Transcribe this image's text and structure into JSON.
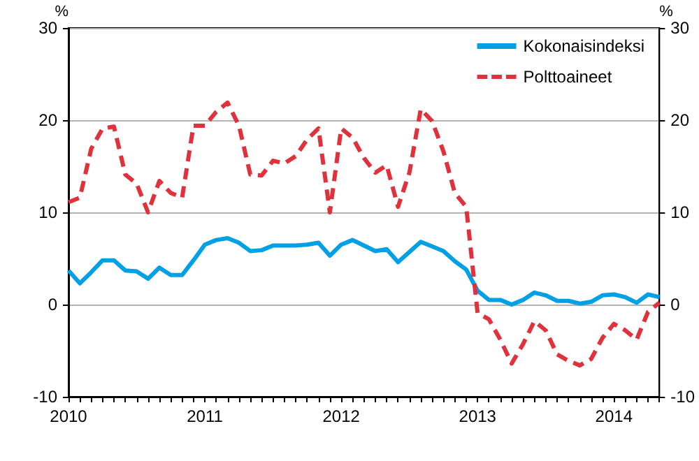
{
  "chart_data": {
    "type": "line",
    "categories": [
      "2010",
      null,
      null,
      null,
      null,
      null,
      null,
      null,
      null,
      null,
      null,
      null,
      "2011",
      null,
      null,
      null,
      null,
      null,
      null,
      null,
      null,
      null,
      null,
      null,
      "2012",
      null,
      null,
      null,
      null,
      null,
      null,
      null,
      null,
      null,
      null,
      null,
      "2013",
      null,
      null,
      null,
      null,
      null,
      null,
      null,
      null,
      null,
      null,
      null,
      "2014",
      null,
      null,
      null,
      null
    ],
    "series": [
      {
        "name": "Kokonaisindeksi",
        "color": "#00a0e6",
        "line_style": "solid",
        "values": [
          3.7,
          2.3,
          3.5,
          4.8,
          4.8,
          3.7,
          3.6,
          2.8,
          4.0,
          3.2,
          3.2,
          4.8,
          6.5,
          7.0,
          7.2,
          6.7,
          5.8,
          5.9,
          6.4,
          6.4,
          6.4,
          6.5,
          6.7,
          5.3,
          6.5,
          7.0,
          6.4,
          5.8,
          6.0,
          4.6,
          5.7,
          6.8,
          6.3,
          5.8,
          4.7,
          3.8,
          1.5,
          0.5,
          0.5,
          0.0,
          0.5,
          1.3,
          1.0,
          0.4,
          0.4,
          0.1,
          0.3,
          1.0,
          1.1,
          0.8,
          0.2,
          1.1,
          0.8
        ]
      },
      {
        "name": "Polttoaineet",
        "color": "#e0323c",
        "line_style": "dashed",
        "values": [
          11.1,
          11.6,
          16.9,
          19.1,
          19.3,
          14.1,
          13.1,
          10.0,
          13.4,
          12.1,
          11.6,
          19.4,
          19.4,
          20.9,
          21.9,
          19.4,
          14.1,
          14.0,
          15.6,
          15.3,
          16.1,
          17.9,
          19.1,
          10.0,
          19.1,
          18.1,
          15.9,
          14.3,
          15.1,
          10.6,
          14.3,
          21.2,
          19.9,
          16.6,
          12.1,
          10.6,
          -0.9,
          -1.6,
          -3.8,
          -6.4,
          -4.3,
          -1.8,
          -2.8,
          -5.4,
          -6.1,
          -6.6,
          -5.9,
          -3.6,
          -2.1,
          -2.8,
          -3.8,
          -0.8,
          0.2
        ]
      }
    ],
    "ylabel": "%",
    "y2label": "%",
    "ylim": [
      -10,
      30
    ],
    "yticks": [
      -10,
      0,
      10,
      20,
      30
    ],
    "y2lim": [
      -10,
      30
    ],
    "y2ticks": [
      -10,
      0,
      10,
      20,
      30
    ],
    "grid": "y",
    "legend": "top right",
    "marker": "none"
  }
}
